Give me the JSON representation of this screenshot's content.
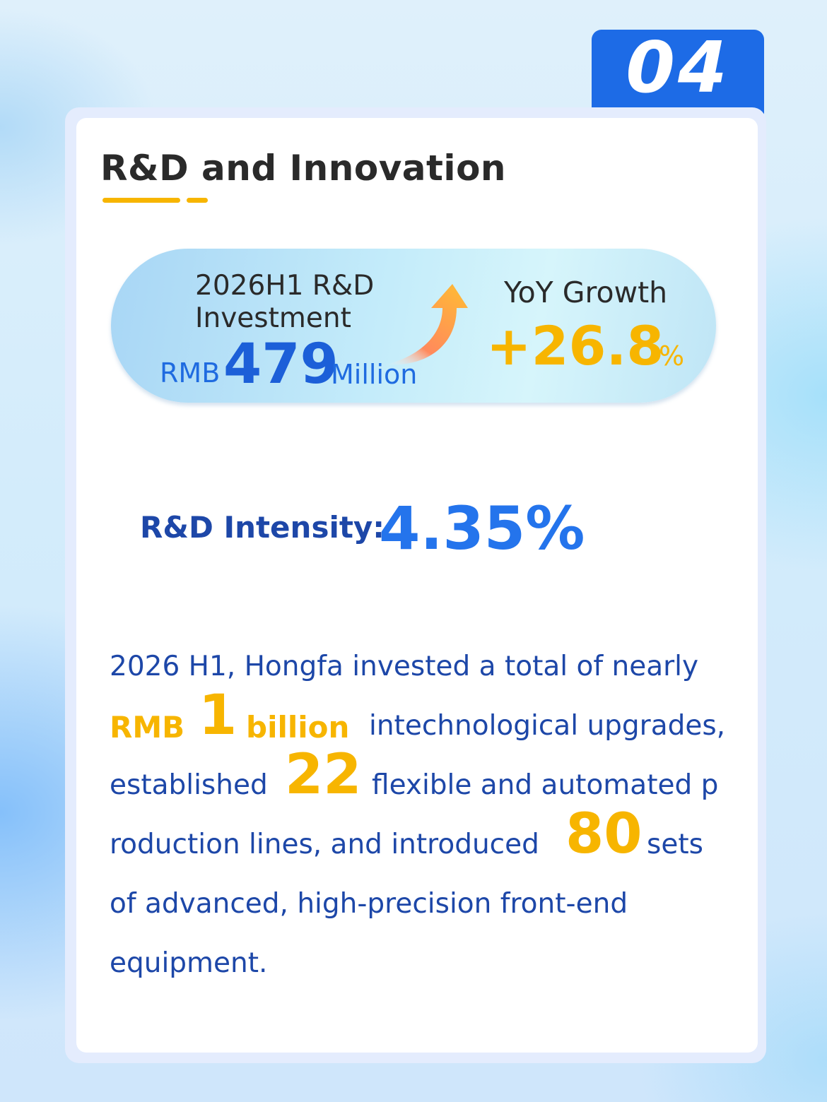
{
  "badge": {
    "number": "04"
  },
  "header": {
    "title": "R&D and Innovation"
  },
  "investment": {
    "title_line1": "2026H1 R&D",
    "title_line2": "Investment",
    "currency": "RMB",
    "amount": "479",
    "unit": "Million"
  },
  "growth": {
    "label": "YoY Growth",
    "value": "+26.8",
    "unit": "%"
  },
  "intensity": {
    "label": "R&D Intensity:",
    "value": "4.35%"
  },
  "paragraph": {
    "line1": "2026 H1, Hongfa invested a total of nearly",
    "rmb": "RMB",
    "one": "1",
    "billion": "billion",
    "line2_rest": "intechnological upgrades,",
    "established": "established",
    "num22": "22",
    "line3_rest": "flexible and automated p",
    "line4_start": "roduction lines, and introduced",
    "num80": "80",
    "sets": "sets",
    "line5": "of advanced, high-precision front-end",
    "line6": "equipment."
  },
  "colors": {
    "badge_blue": "#1d6be6",
    "highlight_yellow": "#f7b500",
    "text_navy": "#1d47a8",
    "accent_blue": "#2474ec"
  }
}
